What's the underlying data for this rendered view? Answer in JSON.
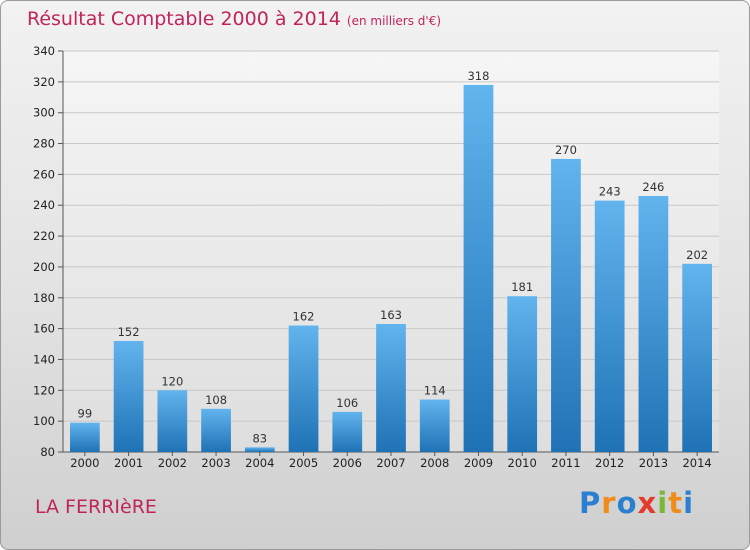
{
  "chart_data": {
    "type": "bar",
    "title": "Résultat Comptable 2000 à 2014",
    "unit": "(en milliers d'€)",
    "categories": [
      "2000",
      "2001",
      "2002",
      "2003",
      "2004",
      "2005",
      "2006",
      "2007",
      "2008",
      "2009",
      "2010",
      "2011",
      "2012",
      "2013",
      "2014"
    ],
    "values": [
      99,
      152,
      120,
      108,
      83,
      162,
      106,
      163,
      114,
      318,
      181,
      270,
      243,
      246,
      202
    ],
    "ylim": [
      80,
      340
    ],
    "yticks": [
      80,
      100,
      120,
      140,
      160,
      180,
      200,
      220,
      240,
      260,
      280,
      300,
      320,
      340
    ],
    "grid": true,
    "xlabel": "",
    "ylabel": ""
  },
  "commune": "LA FERRIèRE",
  "logo": {
    "text": "Proxiti",
    "letters": [
      {
        "ch": "P",
        "color": "#2a7fd0"
      },
      {
        "ch": "r",
        "color": "#f08c1a"
      },
      {
        "ch": "o",
        "color": "#2a7fd0"
      },
      {
        "ch": "x",
        "color": "#e23b2b"
      },
      {
        "ch": "i",
        "color": "#7bb83a"
      },
      {
        "ch": "t",
        "color": "#f08c1a"
      },
      {
        "ch": "i",
        "color": "#2a7fd0"
      }
    ]
  },
  "colors": {
    "title": "#c0245b",
    "bar_light": "#62b4ee",
    "bar_dark": "#1f72b5",
    "grid": "#c8c8c8"
  }
}
